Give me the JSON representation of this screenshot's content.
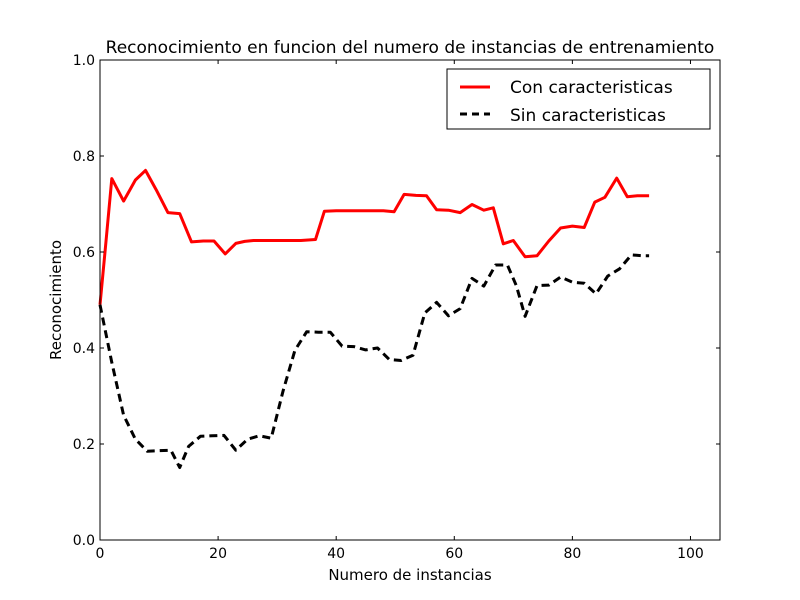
{
  "chart_data": {
    "type": "line",
    "title": "Reconocimiento en funcion del numero de instancias de entrenamiento",
    "xlabel": "Numero de instancias",
    "ylabel": "Reconocimiento",
    "xlim": [
      0,
      105
    ],
    "ylim": [
      0.0,
      1.0
    ],
    "xticks": [
      0,
      20,
      40,
      60,
      80,
      100
    ],
    "xtick_labels": [
      "0",
      "20",
      "40",
      "60",
      "80",
      "100"
    ],
    "yticks": [
      0.0,
      0.2,
      0.4,
      0.6,
      0.8,
      1.0
    ],
    "ytick_labels": [
      "0.0",
      "0.2",
      "0.4",
      "0.6",
      "0.8",
      "1.0"
    ],
    "grid": false,
    "legend_position": "top-right",
    "series": [
      {
        "name": "Con caracteristicas",
        "color": "#ff0000",
        "style": "solid",
        "x": [
          0,
          1,
          2,
          4,
          6,
          7.7,
          9.5,
          11.5,
          13.5,
          15.5,
          17.5,
          19.3,
          21.2,
          23,
          24.5,
          26,
          28,
          30,
          32,
          34,
          36.5,
          38,
          40,
          42,
          44,
          46,
          48,
          49.8,
          51.5,
          53.5,
          55.3,
          57,
          59,
          61,
          63,
          65,
          66.6,
          68.3,
          70,
          72,
          74,
          76,
          78,
          80,
          82,
          83.8,
          85.5,
          87.5,
          89.3,
          91,
          93
        ],
        "y": [
          0.49,
          0.62,
          0.753,
          0.706,
          0.75,
          0.77,
          0.73,
          0.682,
          0.68,
          0.621,
          0.623,
          0.623,
          0.596,
          0.618,
          0.622,
          0.624,
          0.624,
          0.624,
          0.624,
          0.624,
          0.626,
          0.685,
          0.686,
          0.686,
          0.686,
          0.686,
          0.686,
          0.684,
          0.72,
          0.718,
          0.717,
          0.688,
          0.687,
          0.682,
          0.699,
          0.687,
          0.692,
          0.617,
          0.624,
          0.59,
          0.592,
          0.623,
          0.65,
          0.654,
          0.651,
          0.704,
          0.714,
          0.754,
          0.715,
          0.717,
          0.717
        ]
      },
      {
        "name": "Sin caracteristicas",
        "color": "#000000",
        "style": "dashed",
        "x": [
          0,
          2,
          4,
          6,
          8,
          10,
          12,
          13.5,
          15,
          17,
          19,
          21,
          23,
          25,
          27,
          29,
          31,
          33,
          35,
          37,
          39,
          41,
          43,
          45,
          47,
          49,
          51,
          53,
          55,
          57,
          59,
          61,
          63,
          65,
          67,
          69,
          70.5,
          72,
          74,
          76,
          78,
          80,
          82,
          84,
          86,
          88,
          90,
          92,
          93
        ],
        "y": [
          0.49,
          0.37,
          0.26,
          0.21,
          0.185,
          0.186,
          0.187,
          0.151,
          0.195,
          0.216,
          0.217,
          0.218,
          0.187,
          0.21,
          0.217,
          0.212,
          0.31,
          0.395,
          0.434,
          0.433,
          0.433,
          0.404,
          0.403,
          0.396,
          0.4,
          0.376,
          0.374,
          0.385,
          0.473,
          0.495,
          0.467,
          0.482,
          0.545,
          0.529,
          0.573,
          0.573,
          0.53,
          0.466,
          0.53,
          0.531,
          0.548,
          0.537,
          0.535,
          0.513,
          0.55,
          0.565,
          0.594,
          0.592,
          0.592
        ]
      }
    ]
  }
}
